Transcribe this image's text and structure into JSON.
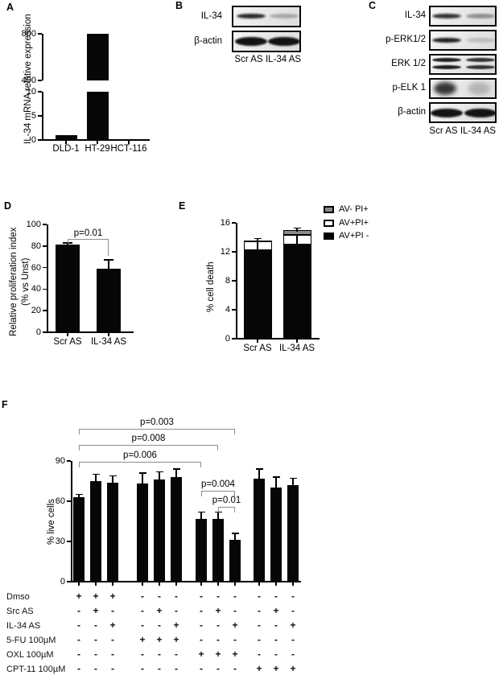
{
  "panel_letters": {
    "A": "A",
    "B": "B",
    "C": "C",
    "D": "D",
    "E": "E",
    "F": "F"
  },
  "chart_data": [
    {
      "panel": "A",
      "type": "bar",
      "title": "",
      "ylabel": "IL-34 mRNA relative expression",
      "categories": [
        "DLD-1",
        "HT-29",
        "HCT-116"
      ],
      "values": [
        1,
        800,
        0
      ],
      "broken_axis": {
        "lower_range": [
          0,
          10
        ],
        "lower_ticks": [
          0,
          5,
          10
        ],
        "upper_range": [
          400,
          800
        ],
        "upper_ticks": [
          400,
          800
        ]
      }
    },
    {
      "panel": "D",
      "type": "bar",
      "title": "",
      "ylabel": "Relative proliferation index (% vs Unst)",
      "ylabel_lines": [
        "Relative proliferation index",
        "(% vs Unst)"
      ],
      "categories": [
        "Scr AS",
        "IL-34 AS"
      ],
      "values": [
        81,
        59
      ],
      "errors": [
        2,
        8
      ],
      "ylim": [
        0,
        100
      ],
      "yticks": [
        0,
        20,
        40,
        60,
        80,
        100
      ],
      "significance": [
        {
          "label": "p=0.01",
          "from": 1,
          "to": 2
        }
      ]
    },
    {
      "panel": "E",
      "type": "bar",
      "subtype": "stacked",
      "title": "",
      "ylabel": "% cell death",
      "categories": [
        "Scr AS",
        "IL-34 AS"
      ],
      "ylim": [
        0,
        16
      ],
      "yticks": [
        0,
        4,
        8,
        12,
        16
      ],
      "series": [
        {
          "name": "AV+PI -",
          "color": "#000000",
          "values": [
            12.2,
            13.0
          ]
        },
        {
          "name": "AV+PI+",
          "color": "#ffffff",
          "values": [
            1.2,
            1.35
          ]
        },
        {
          "name": "AV- PI+",
          "color": "#8a8a8a",
          "values": [
            0.15,
            0.7
          ]
        }
      ],
      "total_errors": [
        0.3,
        0.25
      ],
      "legend": [
        {
          "label": "AV- PI+",
          "color": "#8a8a8a"
        },
        {
          "label": "AV+PI+",
          "color": "#ffffff"
        },
        {
          "label": "AV+PI -",
          "color": "#000000"
        }
      ],
      "legend_position": "top-right"
    },
    {
      "panel": "F",
      "type": "bar",
      "title": "",
      "ylabel": "% live cells",
      "ylim": [
        0,
        90
      ],
      "yticks": [
        0,
        30,
        60,
        90
      ],
      "values": [
        63,
        75,
        74,
        73,
        76,
        78,
        47,
        47,
        31,
        77,
        70,
        72
      ],
      "errors": [
        2,
        5,
        5,
        8,
        6,
        6,
        5,
        5,
        5,
        7,
        8,
        5
      ],
      "significance": [
        {
          "label": "p=0.003",
          "from": 1,
          "to": 9
        },
        {
          "label": "p=0.008",
          "from": 1,
          "to": 8
        },
        {
          "label": "p=0.006",
          "from": 1,
          "to": 7
        },
        {
          "label": "p=0.004",
          "from": 7,
          "to": 9
        },
        {
          "label": "p=0.01",
          "from": 8,
          "to": 9
        }
      ],
      "treatments": [
        {
          "label": "Dmso",
          "signs": [
            "+",
            "+",
            "+",
            "-",
            "-",
            "-",
            "-",
            "-",
            "-",
            "-",
            "-",
            "-"
          ]
        },
        {
          "label": "Src AS",
          "signs": [
            "-",
            "+",
            "-",
            "-",
            "+",
            "-",
            "-",
            "+",
            "-",
            "-",
            "+",
            "-"
          ]
        },
        {
          "label": "IL-34 AS",
          "signs": [
            "-",
            "-",
            "+",
            "-",
            "-",
            "+",
            "-",
            "-",
            "+",
            "-",
            "-",
            "+"
          ]
        },
        {
          "label": "5-FU 100µM",
          "signs": [
            "-",
            "-",
            "-",
            "+",
            "+",
            "+",
            "-",
            "-",
            "-",
            "-",
            "-",
            "-"
          ]
        },
        {
          "label": "OXL 100µM",
          "signs": [
            "-",
            "-",
            "-",
            "-",
            "-",
            "-",
            "+",
            "+",
            "+",
            "-",
            "-",
            "-"
          ]
        },
        {
          "label": "CPT-11 100µM",
          "signs": [
            "-",
            "-",
            "-",
            "-",
            "-",
            "-",
            "-",
            "-",
            "-",
            "+",
            "+",
            "+"
          ]
        }
      ]
    }
  ],
  "panelB": {
    "lane_labels": [
      "Scr AS",
      "IL-34 AS"
    ],
    "rows": [
      {
        "label": "IL-34",
        "bands": [
          {
            "lane": 0,
            "shape": "band",
            "intensity": 0.9
          },
          {
            "lane": 1,
            "shape": "band",
            "intensity": 0.28
          }
        ]
      },
      {
        "label": "β-actin",
        "bands": [
          {
            "lane": 0,
            "shape": "thick",
            "intensity": 1
          },
          {
            "lane": 1,
            "shape": "thick",
            "intensity": 1
          }
        ]
      }
    ]
  },
  "panelC": {
    "lane_labels": [
      "Scr AS",
      "IL-34 AS"
    ],
    "rows": [
      {
        "label": "IL-34",
        "bands": [
          {
            "lane": 0,
            "shape": "band",
            "intensity": 0.85
          },
          {
            "lane": 1,
            "shape": "band",
            "intensity": 0.4
          }
        ]
      },
      {
        "label": "p-ERK1/2",
        "bands": [
          {
            "lane": 0,
            "shape": "band",
            "intensity": 0.95
          },
          {
            "lane": 1,
            "shape": "band",
            "intensity": 0.18
          }
        ]
      },
      {
        "label": "ERK 1/2",
        "bands": [
          {
            "lane": 0,
            "shape": "doublet",
            "intensity": 0.95
          },
          {
            "lane": 1,
            "shape": "doublet",
            "intensity": 0.85
          }
        ]
      },
      {
        "label": "p-ELK 1",
        "bands": [
          {
            "lane": 0,
            "shape": "blob",
            "intensity": 0.85
          },
          {
            "lane": 1,
            "shape": "blob",
            "intensity": 0.22
          }
        ]
      },
      {
        "label": "β-actin",
        "bands": [
          {
            "lane": 0,
            "shape": "thick",
            "intensity": 1
          },
          {
            "lane": 1,
            "shape": "thick",
            "intensity": 1
          }
        ]
      }
    ]
  }
}
